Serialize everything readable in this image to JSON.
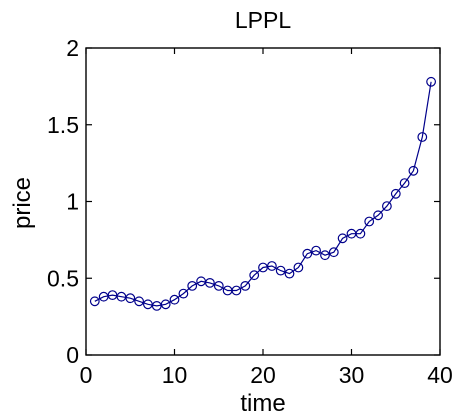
{
  "chart_data": {
    "type": "line",
    "title": "LPPL",
    "xlabel": "time",
    "ylabel": "price",
    "xlim": [
      0,
      40
    ],
    "ylim": [
      0,
      2
    ],
    "x_ticks": [
      "0",
      "10",
      "20",
      "30",
      "40"
    ],
    "y_ticks": [
      "0",
      "0.5",
      "1",
      "1.5",
      "2"
    ],
    "grid": false,
    "legend": "none",
    "marker": "circle",
    "color": "#00008b",
    "x": [
      1,
      2,
      3,
      4,
      5,
      6,
      7,
      8,
      9,
      10,
      11,
      12,
      13,
      14,
      15,
      16,
      17,
      18,
      19,
      20,
      21,
      22,
      23,
      24,
      25,
      26,
      27,
      28,
      29,
      30,
      31,
      32,
      33,
      34,
      35,
      36,
      37,
      38,
      39
    ],
    "y": [
      0.35,
      0.38,
      0.39,
      0.38,
      0.37,
      0.35,
      0.33,
      0.32,
      0.33,
      0.36,
      0.4,
      0.45,
      0.48,
      0.47,
      0.45,
      0.42,
      0.42,
      0.45,
      0.52,
      0.57,
      0.58,
      0.55,
      0.53,
      0.57,
      0.66,
      0.68,
      0.65,
      0.67,
      0.76,
      0.79,
      0.79,
      0.87,
      0.91,
      0.97,
      1.05,
      1.12,
      1.2,
      1.42,
      1.78
    ]
  }
}
